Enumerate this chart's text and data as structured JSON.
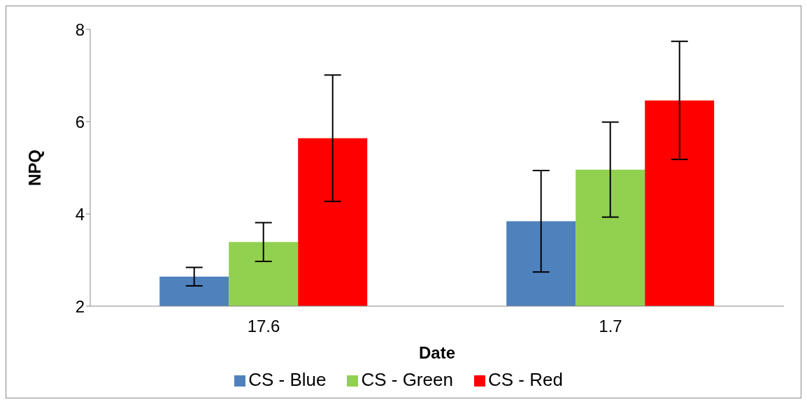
{
  "chart_data": {
    "type": "bar",
    "xlabel": "Date",
    "ylabel": "NPQ",
    "categories": [
      "17.6",
      "1.7"
    ],
    "series": [
      {
        "name": "CS - Blue",
        "color": "#4f81bd",
        "values": [
          2.64,
          3.84
        ],
        "errors": [
          0.2,
          1.1
        ]
      },
      {
        "name": "CS - Green",
        "color": "#92d050",
        "values": [
          3.39,
          4.96
        ],
        "errors": [
          0.42,
          1.03
        ]
      },
      {
        "name": "CS - Red",
        "color": "#ff0000",
        "values": [
          5.64,
          6.46
        ],
        "errors": [
          1.37,
          1.28
        ]
      }
    ],
    "ylim": [
      2,
      8
    ],
    "yticks": [
      2,
      4,
      6,
      8
    ],
    "grid": false,
    "legend": "bottom"
  }
}
